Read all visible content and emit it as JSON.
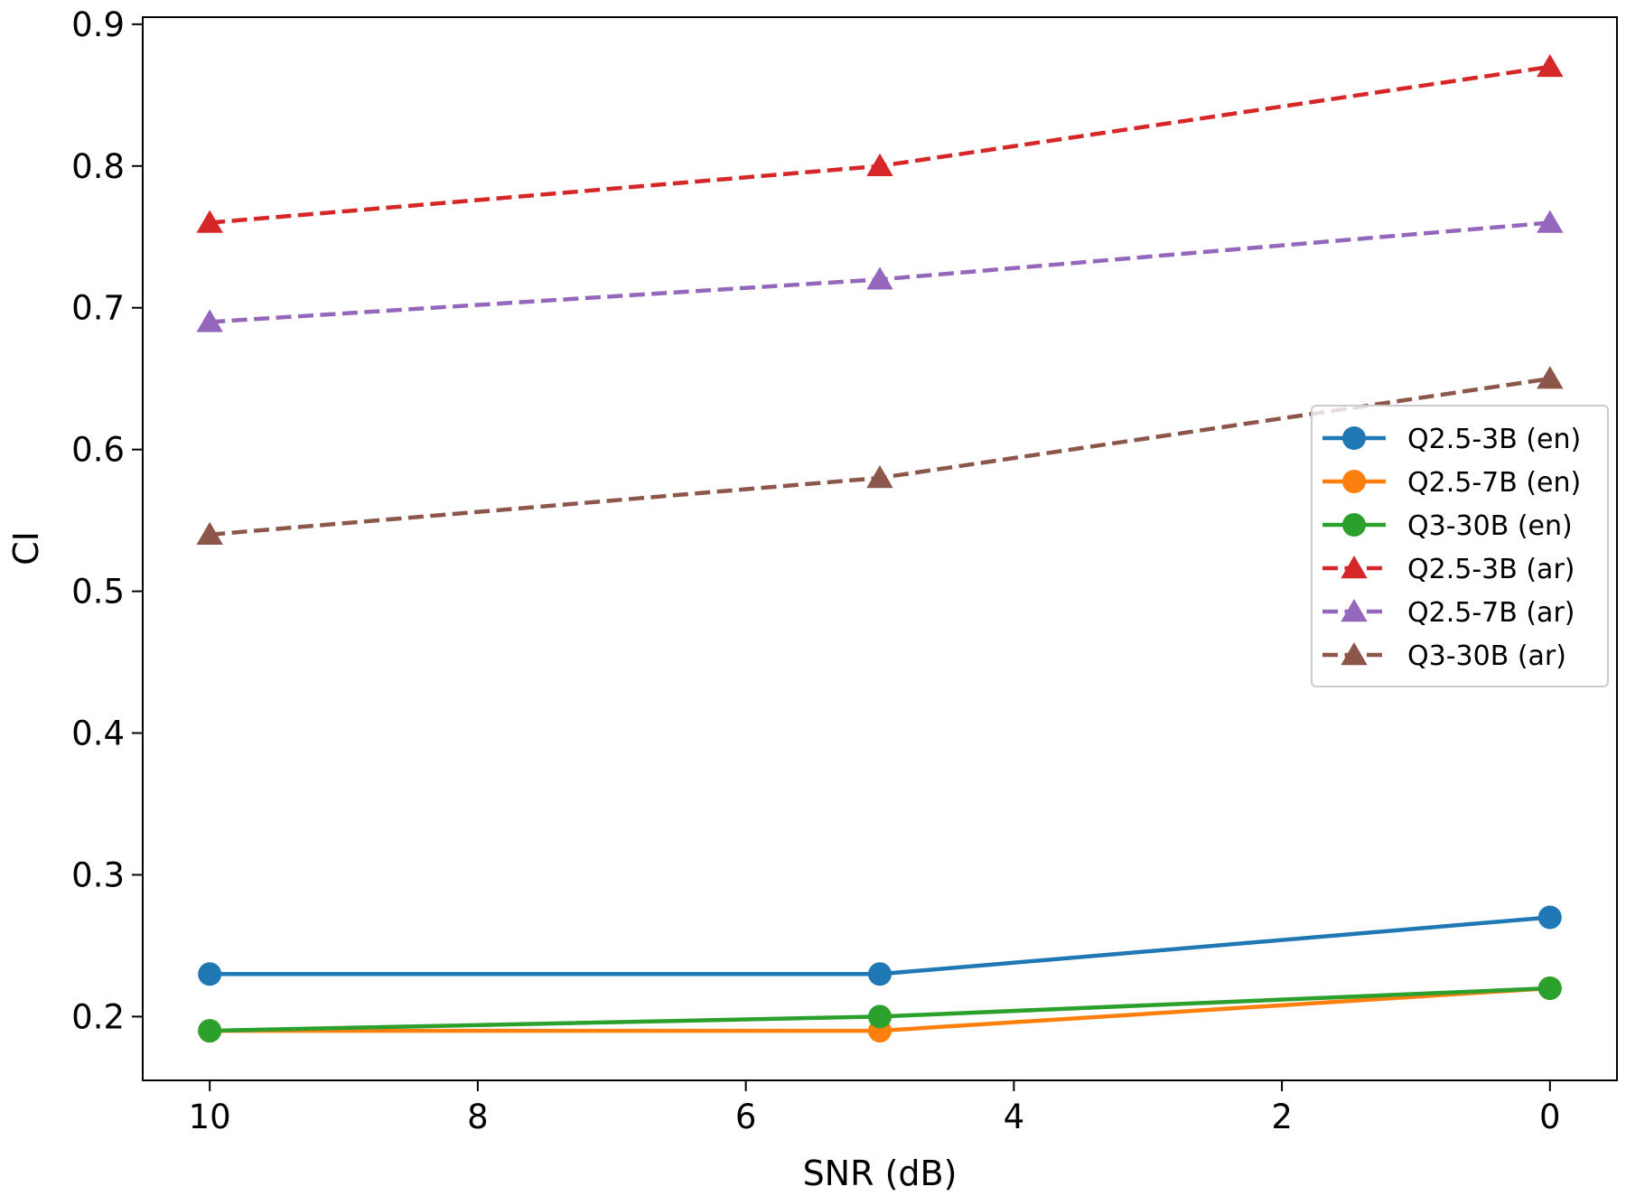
{
  "chart_data": {
    "type": "line",
    "title": "",
    "xlabel": "SNR (dB)",
    "ylabel": "CI",
    "x": [
      10,
      5,
      0
    ],
    "xlim": [
      10.5,
      -0.5
    ],
    "x_inverted": true,
    "ylim": [
      0.155,
      0.905
    ],
    "xticks": [
      "10",
      "8",
      "6",
      "4",
      "2",
      "0"
    ],
    "yticks": [
      "0.2",
      "0.3",
      "0.4",
      "0.5",
      "0.6",
      "0.7",
      "0.8",
      "0.9"
    ],
    "grid": false,
    "legend_position": "center-right",
    "series": [
      {
        "name": "Q2.5-3B (en)",
        "values": [
          0.23,
          0.23,
          0.27
        ],
        "color": "#1f77b4",
        "marker": "circle",
        "linestyle": "solid"
      },
      {
        "name": "Q2.5-7B (en)",
        "values": [
          0.19,
          0.19,
          0.22
        ],
        "color": "#ff7f0e",
        "marker": "circle",
        "linestyle": "solid"
      },
      {
        "name": "Q3-30B (en)",
        "values": [
          0.19,
          0.2,
          0.22
        ],
        "color": "#2ca02c",
        "marker": "circle",
        "linestyle": "solid"
      },
      {
        "name": "Q2.5-3B (ar)",
        "values": [
          0.76,
          0.8,
          0.87
        ],
        "color": "#d62728",
        "marker": "triangle",
        "linestyle": "dashed"
      },
      {
        "name": "Q2.5-7B (ar)",
        "values": [
          0.69,
          0.72,
          0.76
        ],
        "color": "#9467bd",
        "marker": "triangle",
        "linestyle": "dashed"
      },
      {
        "name": "Q3-30B (ar)",
        "values": [
          0.54,
          0.58,
          0.65
        ],
        "color": "#8c564b",
        "marker": "triangle",
        "linestyle": "dashed"
      }
    ]
  }
}
